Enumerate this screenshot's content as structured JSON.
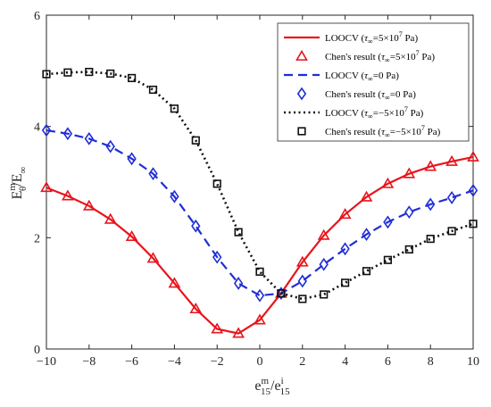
{
  "chart_data": {
    "type": "line",
    "xlim": [
      -10,
      10
    ],
    "ylim": [
      0,
      6
    ],
    "xticks": [
      "−10",
      "−8",
      "−6",
      "−4",
      "−2",
      "0",
      "2",
      "4",
      "6",
      "8",
      "10"
    ],
    "yticks": [
      "0",
      "2",
      "4",
      "6"
    ],
    "xlabel": {
      "base": "e",
      "sup": "m",
      "sub": "15",
      "sep": "/",
      "base2": "e",
      "sup2": "i",
      "sub2": "15"
    },
    "ylabel": {
      "base": "E",
      "sup": "m",
      "sub": "θ",
      "sep": "/",
      "base2": "E",
      "sub2": "∞"
    },
    "legend_position": "top-right",
    "legend": [
      {
        "main": "LOOCV (",
        "tau": "τ",
        "tsub": "∞",
        "val": "=5",
        "times": "×",
        "pow": "10",
        "exp": "7",
        "unit": " Pa)"
      },
      {
        "main": "Chen's result (",
        "tau": "τ",
        "tsub": "∞",
        "val": "=5",
        "times": "×",
        "pow": "10",
        "exp": "7",
        "unit": " Pa)"
      },
      {
        "main": "LOOCV (",
        "tau": "τ",
        "tsub": "∞",
        "val": "=0 Pa)",
        "times": "",
        "pow": "",
        "exp": "",
        "unit": ""
      },
      {
        "main": "Chen's result (",
        "tau": "τ",
        "tsub": "∞",
        "val": "=0 Pa)",
        "times": "",
        "pow": "",
        "exp": "",
        "unit": ""
      },
      {
        "main": "LOOCV (",
        "tau": "τ",
        "tsub": "∞",
        "val": "=−5",
        "times": "×",
        "pow": "10",
        "exp": "7",
        "unit": " Pa)"
      },
      {
        "main": "Chen's result (",
        "tau": "τ",
        "tsub": "∞",
        "val": "=−5",
        "times": "×",
        "pow": "10",
        "exp": "7",
        "unit": " Pa)"
      }
    ],
    "series": [
      {
        "style": "solid",
        "color": "#e8141c",
        "marker": "triangle",
        "x": [
          -10,
          -9,
          -8,
          -7,
          -6,
          -5,
          -4,
          -3,
          -2,
          -1,
          0,
          1,
          2,
          3,
          4,
          5,
          6,
          7,
          8,
          9,
          10
        ],
        "line_y": [
          2.9,
          2.75,
          2.57,
          2.33,
          2.02,
          1.63,
          1.18,
          0.72,
          0.36,
          0.28,
          0.52,
          1.0,
          1.56,
          2.04,
          2.42,
          2.73,
          2.97,
          3.15,
          3.28,
          3.37,
          3.45
        ],
        "marker_y": [
          2.9,
          2.75,
          2.57,
          2.33,
          2.02,
          1.63,
          1.18,
          0.72,
          0.36,
          0.28,
          0.52,
          1.0,
          1.56,
          2.04,
          2.42,
          2.73,
          2.97,
          3.15,
          3.28,
          3.37,
          3.45
        ]
      },
      {
        "style": "dashed",
        "color": "#1f2ed6",
        "marker": "diamond",
        "x": [
          -10,
          -9,
          -8,
          -7,
          -6,
          -5,
          -4,
          -3,
          -2,
          -1,
          0,
          1,
          2,
          3,
          4,
          5,
          6,
          7,
          8,
          9,
          10
        ],
        "line_y": [
          3.93,
          3.87,
          3.78,
          3.64,
          3.42,
          3.15,
          2.74,
          2.21,
          1.65,
          1.18,
          0.96,
          1.0,
          1.22,
          1.52,
          1.8,
          2.06,
          2.28,
          2.46,
          2.6,
          2.72,
          2.85
        ],
        "marker_y": [
          3.93,
          3.87,
          3.78,
          3.64,
          3.42,
          3.15,
          2.74,
          2.21,
          1.65,
          1.18,
          0.96,
          1.0,
          1.22,
          1.52,
          1.8,
          2.06,
          2.28,
          2.46,
          2.6,
          2.72,
          2.85
        ]
      },
      {
        "style": "dotted",
        "color": "#111111",
        "marker": "square",
        "x": [
          -10,
          -9,
          -8,
          -7,
          -6,
          -5,
          -4,
          -3,
          -2,
          -1,
          0,
          1,
          2,
          3,
          4,
          5,
          6,
          7,
          8,
          9,
          10
        ],
        "line_y": [
          4.94,
          4.97,
          4.98,
          4.95,
          4.87,
          4.66,
          4.32,
          3.75,
          2.97,
          2.1,
          1.39,
          1.0,
          0.9,
          0.98,
          1.19,
          1.4,
          1.6,
          1.79,
          1.98,
          2.12,
          2.25
        ],
        "marker_y": [
          4.94,
          4.97,
          4.98,
          4.95,
          4.87,
          4.66,
          4.32,
          3.75,
          2.97,
          2.1,
          1.39,
          1.0,
          0.9,
          0.98,
          1.19,
          1.4,
          1.6,
          1.79,
          1.98,
          2.12,
          2.25
        ]
      }
    ]
  }
}
